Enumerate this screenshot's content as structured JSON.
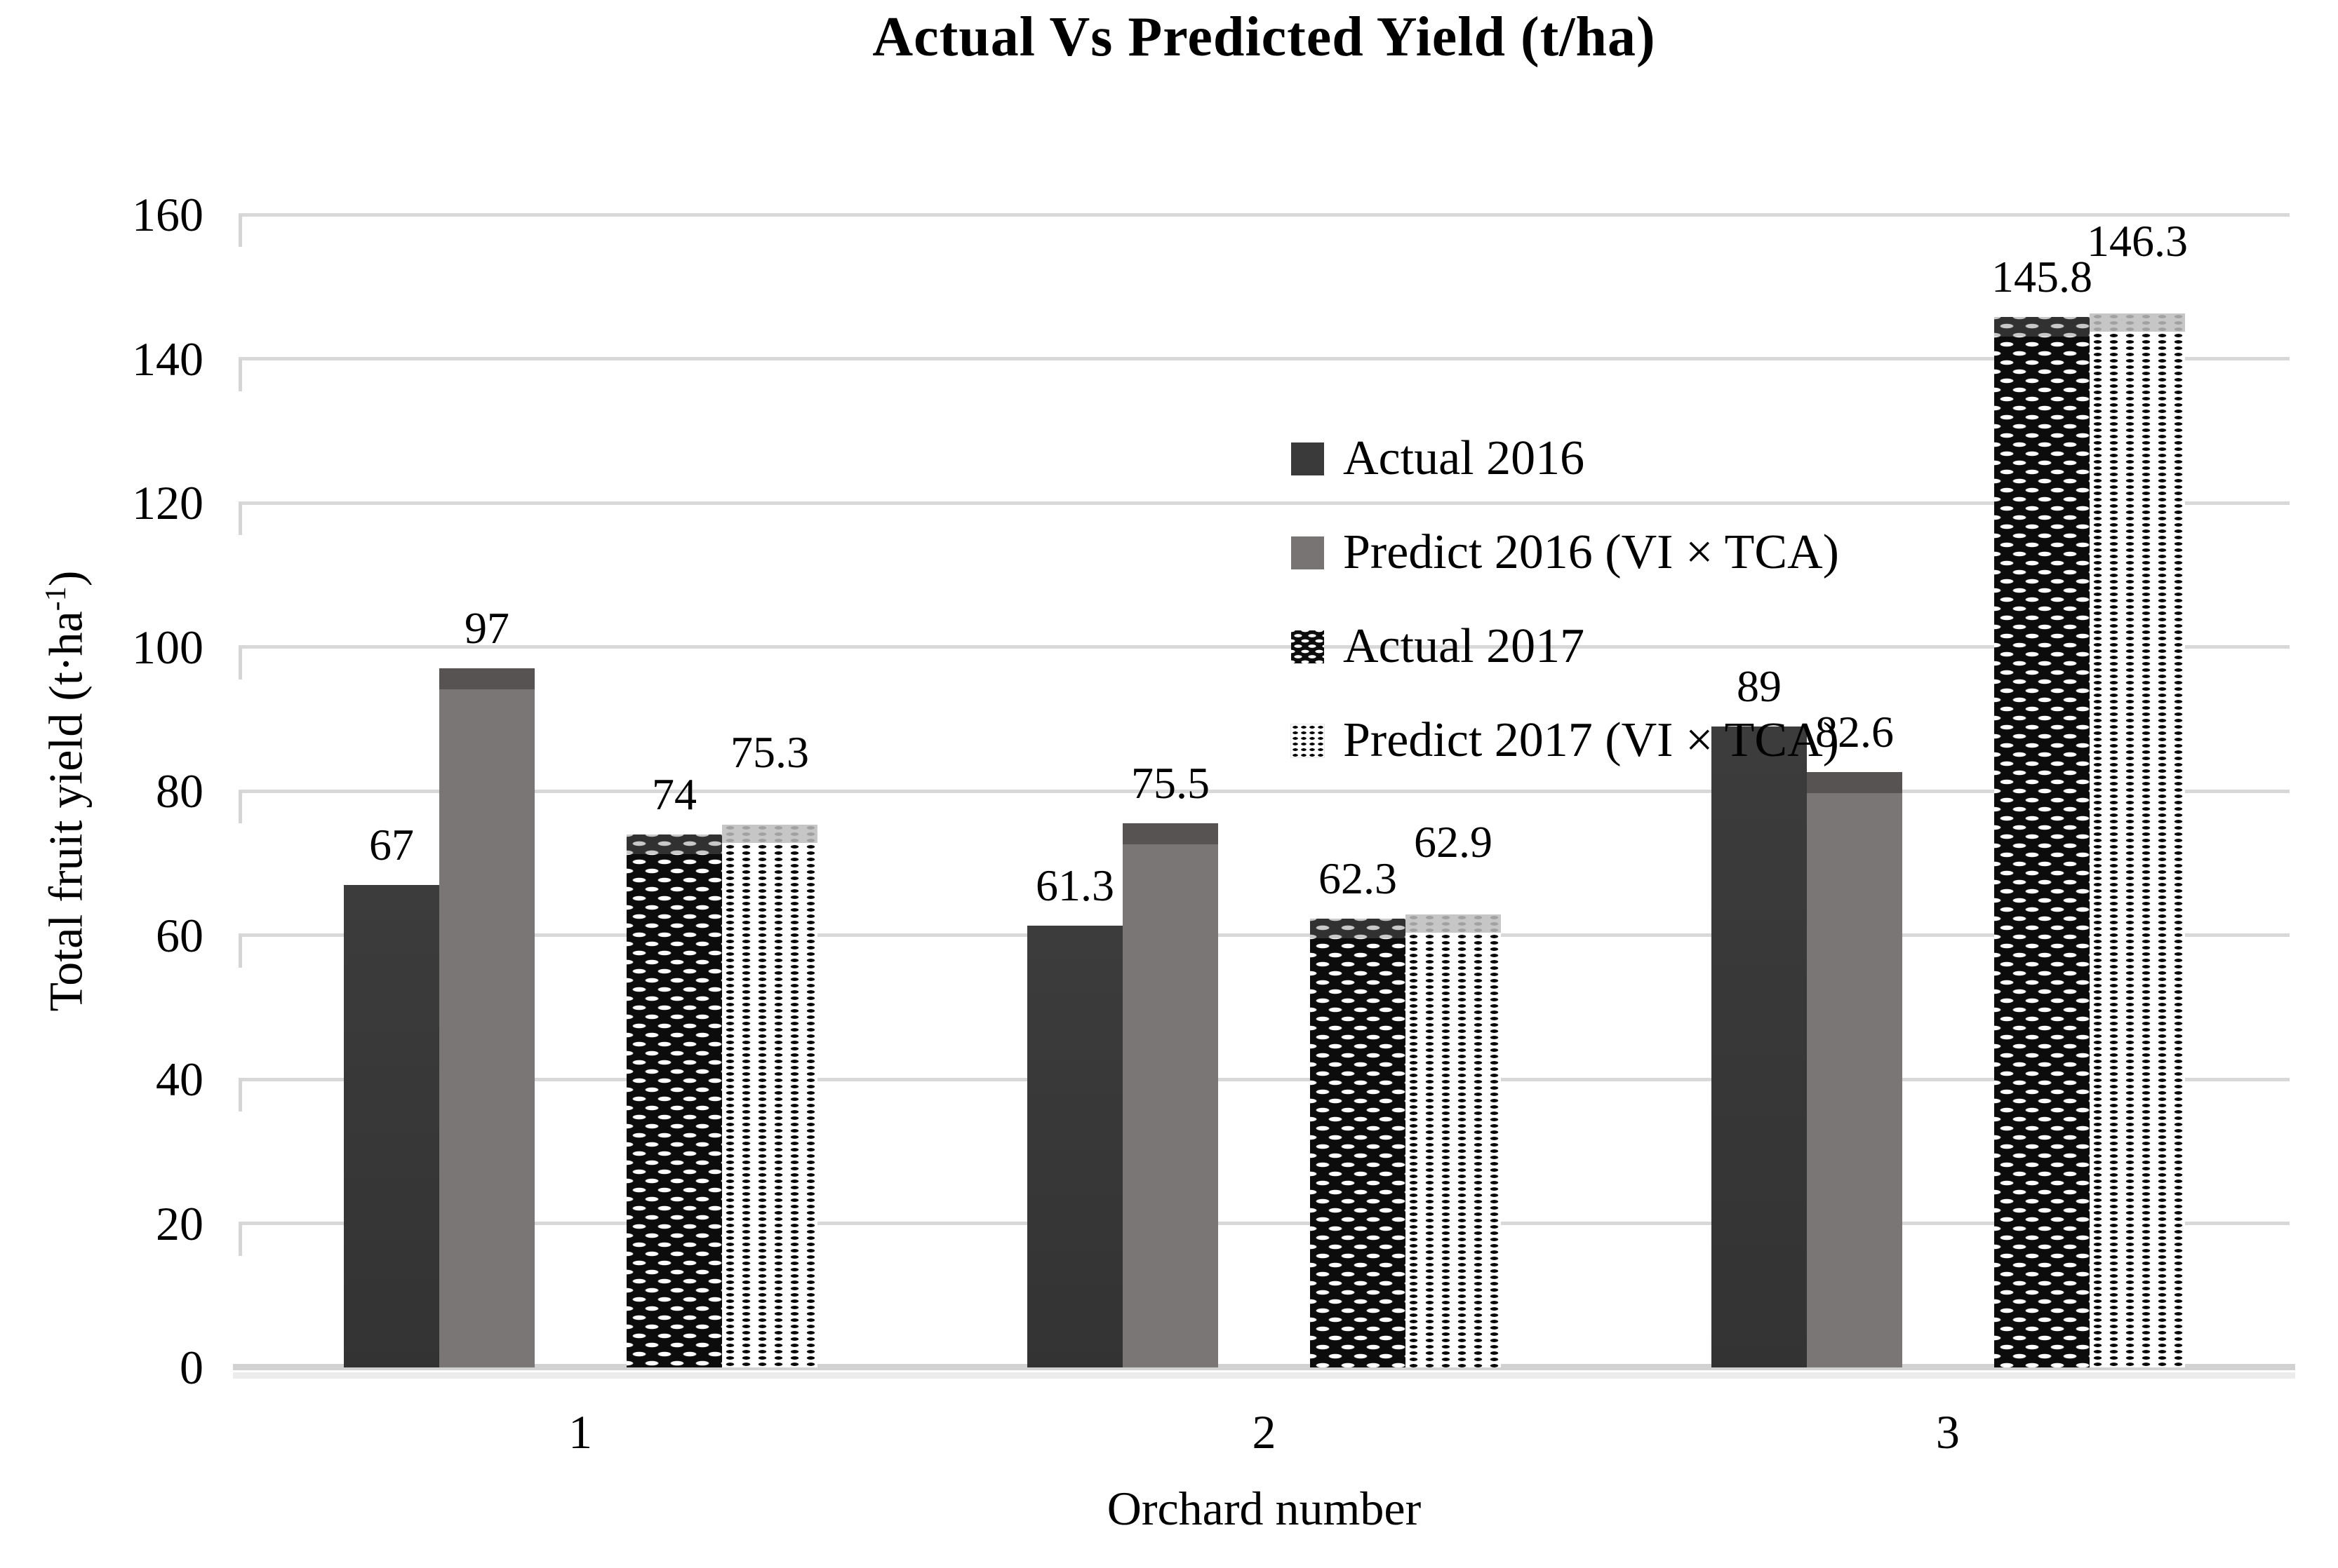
{
  "figure": {
    "title": "Actual Vs Predicted Yield (t/ha)"
  },
  "axes": {
    "y_title_main": "Total fruit yield (t·ha",
    "y_title_sup": "-1",
    "y_title_close": ")",
    "x_title": "Orchard number"
  },
  "chart_data": {
    "type": "bar",
    "title": "Actual Vs Predicted Yield (t/ha)",
    "xlabel": "Orchard number",
    "ylabel": "Total fruit yield (t·ha⁻¹)",
    "ylim": [
      0,
      160
    ],
    "ytick_step": 20,
    "yticks": [
      0,
      20,
      40,
      60,
      80,
      100,
      120,
      140,
      160
    ],
    "grid": "horizontal",
    "legend_position": "inside-top-center",
    "categories": [
      "1",
      "2",
      "3"
    ],
    "series": [
      {
        "name": "Actual 2016",
        "values": [
          67,
          61.3,
          89
        ]
      },
      {
        "name": "Predict 2016 (VI × TCA)",
        "values": [
          97,
          75.5,
          82.6
        ]
      },
      {
        "name": "Actual 2017",
        "values": [
          74,
          62.3,
          145.8
        ]
      },
      {
        "name": "Predict 2017 (VI × TCA)",
        "values": [
          75.3,
          62.9,
          146.3
        ]
      }
    ]
  },
  "colors": {
    "actual_2016": "#373737",
    "predict_2016": "#7a7676",
    "predict_2016_cap": "#575353",
    "actual_2017_base": "#0c0c0c",
    "predict_2017_base": "#ffffff",
    "gridline": "#d8d8d8",
    "axis_line": "#d2d2d2",
    "text": "#000000"
  }
}
